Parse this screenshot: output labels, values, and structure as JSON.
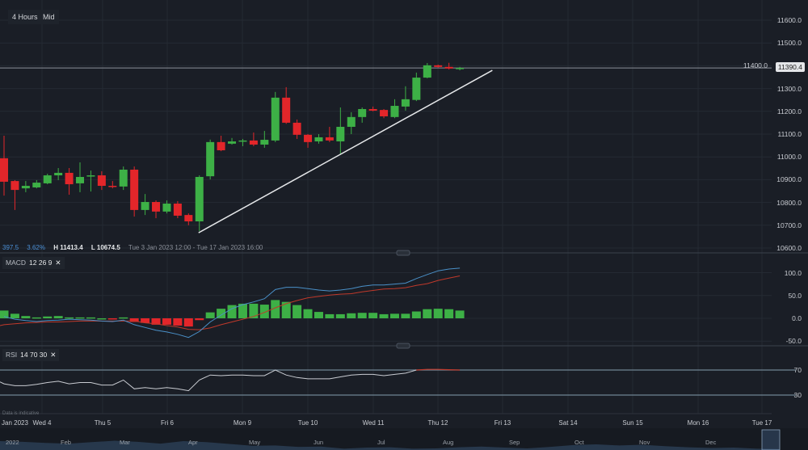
{
  "toolbar": {
    "interval": "4 Hours",
    "price_type": "Mid"
  },
  "legend": {
    "change": "397.5",
    "change_pct": "3.62%",
    "high": "H 11413.4",
    "low": "L 10674.5",
    "range": "Tue 3 Jan 2023 12:00 - Tue 17 Jan 2023 16:00"
  },
  "macd_label": {
    "name": "MACD",
    "params": "12  26  9",
    "close": "✕"
  },
  "rsi_label": {
    "name": "RSI",
    "params": "14  70  30",
    "close": "✕"
  },
  "last_price": "11390.4",
  "note": "Data is indicative",
  "colors": {
    "up": "#3db046",
    "down": "#e3262a",
    "macd": "#4a90c8",
    "signal": "#c0392b",
    "rsi": "#c9ccd2",
    "trendline": "#e6e8ea",
    "background": "#1a1e26"
  },
  "chart_data": [
    {
      "type": "candlestick",
      "title": "",
      "y_ticks": [
        "11600.0",
        "11500.0",
        "11400.0",
        "11300.0",
        "11200.0",
        "11100.0",
        "11000.0",
        "10900.0",
        "10800.0",
        "10700.0",
        "10600.0"
      ],
      "ylim": [
        10600,
        11600
      ],
      "x_ticks": [
        "Jan 2023",
        "Wed 4",
        "Thu 5",
        "Fri 6",
        "Mon 9",
        "Tue 10",
        "Wed 11",
        "Thu 12",
        "Fri 13",
        "Sat 14",
        "Sun 15",
        "Mon 16",
        "Tue 17"
      ],
      "ohlc": [
        [
          10994,
          11093,
          10830,
          10891
        ],
        [
          10894,
          10898,
          10767,
          10855
        ],
        [
          10862,
          10894,
          10845,
          10873
        ],
        [
          10866,
          10898,
          10862,
          10887
        ],
        [
          10884,
          10926,
          10880,
          10919
        ],
        [
          10919,
          10951,
          10898,
          10930
        ],
        [
          10930,
          10951,
          10834,
          10880
        ],
        [
          10884,
          10976,
          10845,
          10912
        ],
        [
          10915,
          10940,
          10848,
          10919
        ],
        [
          10919,
          10937,
          10855,
          10873
        ],
        [
          10873,
          10894,
          10862,
          10870
        ],
        [
          10870,
          10958,
          10855,
          10944
        ],
        [
          10944,
          10958,
          10738,
          10767
        ],
        [
          10767,
          10837,
          10745,
          10802
        ],
        [
          10802,
          10809,
          10731,
          10760
        ],
        [
          10760,
          10809,
          10752,
          10795
        ],
        [
          10795,
          10806,
          10731,
          10742
        ],
        [
          10745,
          10752,
          10700,
          10717
        ],
        [
          10717,
          10919,
          10674,
          10912
        ],
        [
          10915,
          11076,
          10901,
          11065
        ],
        [
          11065,
          11093,
          11025,
          11029
        ],
        [
          11058,
          11083,
          11054,
          11068
        ],
        [
          11068,
          11079,
          11047,
          11072
        ],
        [
          11072,
          11107,
          11047,
          11054
        ],
        [
          11054,
          11114,
          11040,
          11075
        ],
        [
          11072,
          11285,
          11065,
          11260
        ],
        [
          11260,
          11306,
          11145,
          11150
        ],
        [
          11150,
          11164,
          11079,
          11097
        ],
        [
          11097,
          11100,
          11040,
          11065
        ],
        [
          11068,
          11100,
          11058,
          11086
        ],
        [
          11086,
          11132,
          11065,
          11072
        ],
        [
          11068,
          11217,
          11012,
          11132
        ],
        [
          11132,
          11196,
          11100,
          11175
        ],
        [
          11175,
          11217,
          11150,
          11210
        ],
        [
          11210,
          11221,
          11200,
          11203
        ],
        [
          11206,
          11210,
          11170,
          11178
        ],
        [
          11175,
          11253,
          11170,
          11224
        ],
        [
          11221,
          11310,
          11203,
          11253
        ],
        [
          11250,
          11370,
          11245,
          11348
        ],
        [
          11348,
          11412,
          11345,
          11402
        ],
        [
          11402,
          11405,
          11392,
          11395
        ],
        [
          11395,
          11413,
          11384,
          11388
        ],
        [
          11389,
          11395,
          11380,
          11390.4
        ]
      ],
      "trendline": [
        {
          "bar": 18,
          "price": 10667
        },
        {
          "bar": 45,
          "price": 11380
        }
      ]
    },
    {
      "type": "macd",
      "y_ticks": [
        "100.0",
        "50.0",
        "0.0",
        "-50.0"
      ],
      "ylim": [
        -50,
        100
      ],
      "histogram": [
        17,
        10,
        5,
        2,
        4,
        5,
        2,
        2,
        2,
        0,
        -1,
        2,
        -8,
        -10,
        -14,
        -14,
        -16,
        -18,
        -4,
        13,
        21,
        29,
        32,
        32,
        30,
        40,
        36,
        29,
        20,
        14,
        9,
        9,
        11,
        12,
        12,
        9,
        10,
        10,
        15,
        20,
        21,
        20,
        17
      ],
      "macd": [
        4,
        -2,
        -5,
        -7,
        -5,
        -4,
        -2,
        -3,
        -4,
        -6,
        -7,
        -4,
        -14,
        -20,
        -26,
        -30,
        -35,
        -42,
        -29,
        -8,
        7,
        21,
        30,
        36,
        43,
        63,
        68,
        68,
        65,
        62,
        60,
        62,
        65,
        70,
        73,
        73,
        75,
        77,
        87,
        96,
        104,
        108,
        110
      ],
      "signal": [
        -14,
        -12,
        -10,
        -9,
        -8,
        -8,
        -7,
        -6,
        -6,
        -6,
        -6,
        -6,
        -6,
        -10,
        -12,
        -16,
        -19,
        -24,
        -25,
        -21,
        -14,
        -8,
        -2,
        4,
        13,
        23,
        32,
        39,
        45,
        48,
        51,
        53,
        54,
        58,
        61,
        64,
        65,
        67,
        72,
        76,
        83,
        88,
        93
      ]
    },
    {
      "type": "line",
      "name": "RSI",
      "y_ticks": [
        "70",
        "30"
      ],
      "levels": [
        70,
        30
      ],
      "values": [
        48,
        45,
        45,
        47,
        50,
        52,
        48,
        50,
        50,
        46,
        46,
        54,
        40,
        42,
        40,
        42,
        40,
        37,
        54,
        62,
        61,
        62,
        62,
        61,
        61,
        70,
        62,
        58,
        56,
        56,
        56,
        59,
        62,
        63,
        63,
        61,
        63,
        65,
        70,
        71,
        71,
        70.5,
        70
      ]
    }
  ],
  "navigator": {
    "labels": [
      "2022",
      "Feb",
      "Mar",
      "Apr",
      "May",
      "Jun",
      "Jul",
      "Aug",
      "Sep",
      "Oct",
      "Nov",
      "Dec"
    ]
  }
}
